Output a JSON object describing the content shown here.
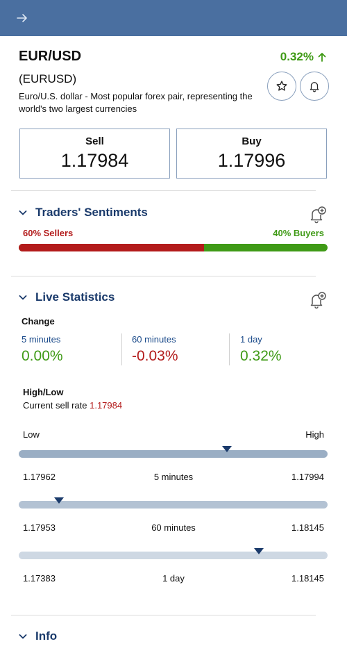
{
  "instrument": {
    "symbol": "EUR/USD",
    "code": "(EURUSD)",
    "description": "Euro/U.S. dollar - Most popular forex pair, representing the world's two largest currencies",
    "change_pct": "0.32%"
  },
  "prices": {
    "sell_label": "Sell",
    "sell_value": "1.17984",
    "buy_label": "Buy",
    "buy_value": "1.17996"
  },
  "sentiment": {
    "title": "Traders' Sentiments",
    "sellers_label": "60% Sellers",
    "buyers_label": "40% Buyers",
    "sellers_pct": 60,
    "buyers_pct": 40
  },
  "live_stats": {
    "title": "Live Statistics",
    "change_label": "Change",
    "changes": [
      {
        "label": "5 minutes",
        "value": "0.00%",
        "color": "#3f9a16"
      },
      {
        "label": "60 minutes",
        "value": "-0.03%",
        "color": "#b31b1b"
      },
      {
        "label": "1 day",
        "value": "0.32%",
        "color": "#3f9a16"
      }
    ],
    "high_low_label": "High/Low",
    "current_sell_label": "Current sell rate",
    "current_sell_rate": "1.17984",
    "low_label": "Low",
    "high_label": "High",
    "ranges": [
      {
        "period": "5 minutes",
        "low": "1.17962",
        "high": "1.17994"
      },
      {
        "period": "60 minutes",
        "low": "1.17953",
        "high": "1.18145"
      },
      {
        "period": "1 day",
        "low": "1.17383",
        "high": "1.18145"
      }
    ]
  },
  "info": {
    "title": "Info"
  },
  "colors": {
    "header": "#4a6fa0",
    "positive": "#3f9a16",
    "negative": "#b31b1b",
    "accent": "#1a3a6b"
  },
  "icons": {
    "back": "arrow-right-icon",
    "favorite": "star-icon",
    "alert": "bell-icon",
    "add_alert": "bell-plus-icon",
    "collapse": "chevron-down-icon",
    "up": "arrow-up-icon"
  }
}
